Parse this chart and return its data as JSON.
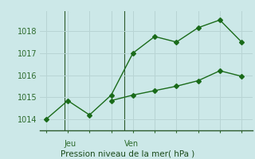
{
  "line1_x": [
    0,
    1,
    2,
    3,
    4,
    5,
    6,
    7,
    8,
    9
  ],
  "line1_y": [
    1014.0,
    1014.85,
    1014.2,
    1015.1,
    1017.0,
    1017.75,
    1017.5,
    1018.15,
    1018.5,
    1017.5
  ],
  "line2_x": [
    3,
    4,
    5,
    6,
    7,
    8,
    9
  ],
  "line2_y": [
    1014.85,
    1015.1,
    1015.3,
    1015.5,
    1015.75,
    1016.2,
    1015.95
  ],
  "line_color": "#1a6b1a",
  "bg_color": "#cce8e8",
  "grid_color": "#b8d4d4",
  "yticks": [
    1014,
    1015,
    1016,
    1017,
    1018
  ],
  "ylim": [
    1013.5,
    1018.9
  ],
  "xlim": [
    -0.3,
    9.5
  ],
  "vline1_x": 0.85,
  "vline2_x": 3.6,
  "vline_color": "#2d5a2d",
  "jeu_label": "Jeu",
  "ven_label": "Ven",
  "title": "Pression niveau de la mer( hPa )",
  "title_color": "#1a4a1a",
  "tick_color": "#2d6b2d",
  "markersize": 3,
  "linewidth": 1.0
}
